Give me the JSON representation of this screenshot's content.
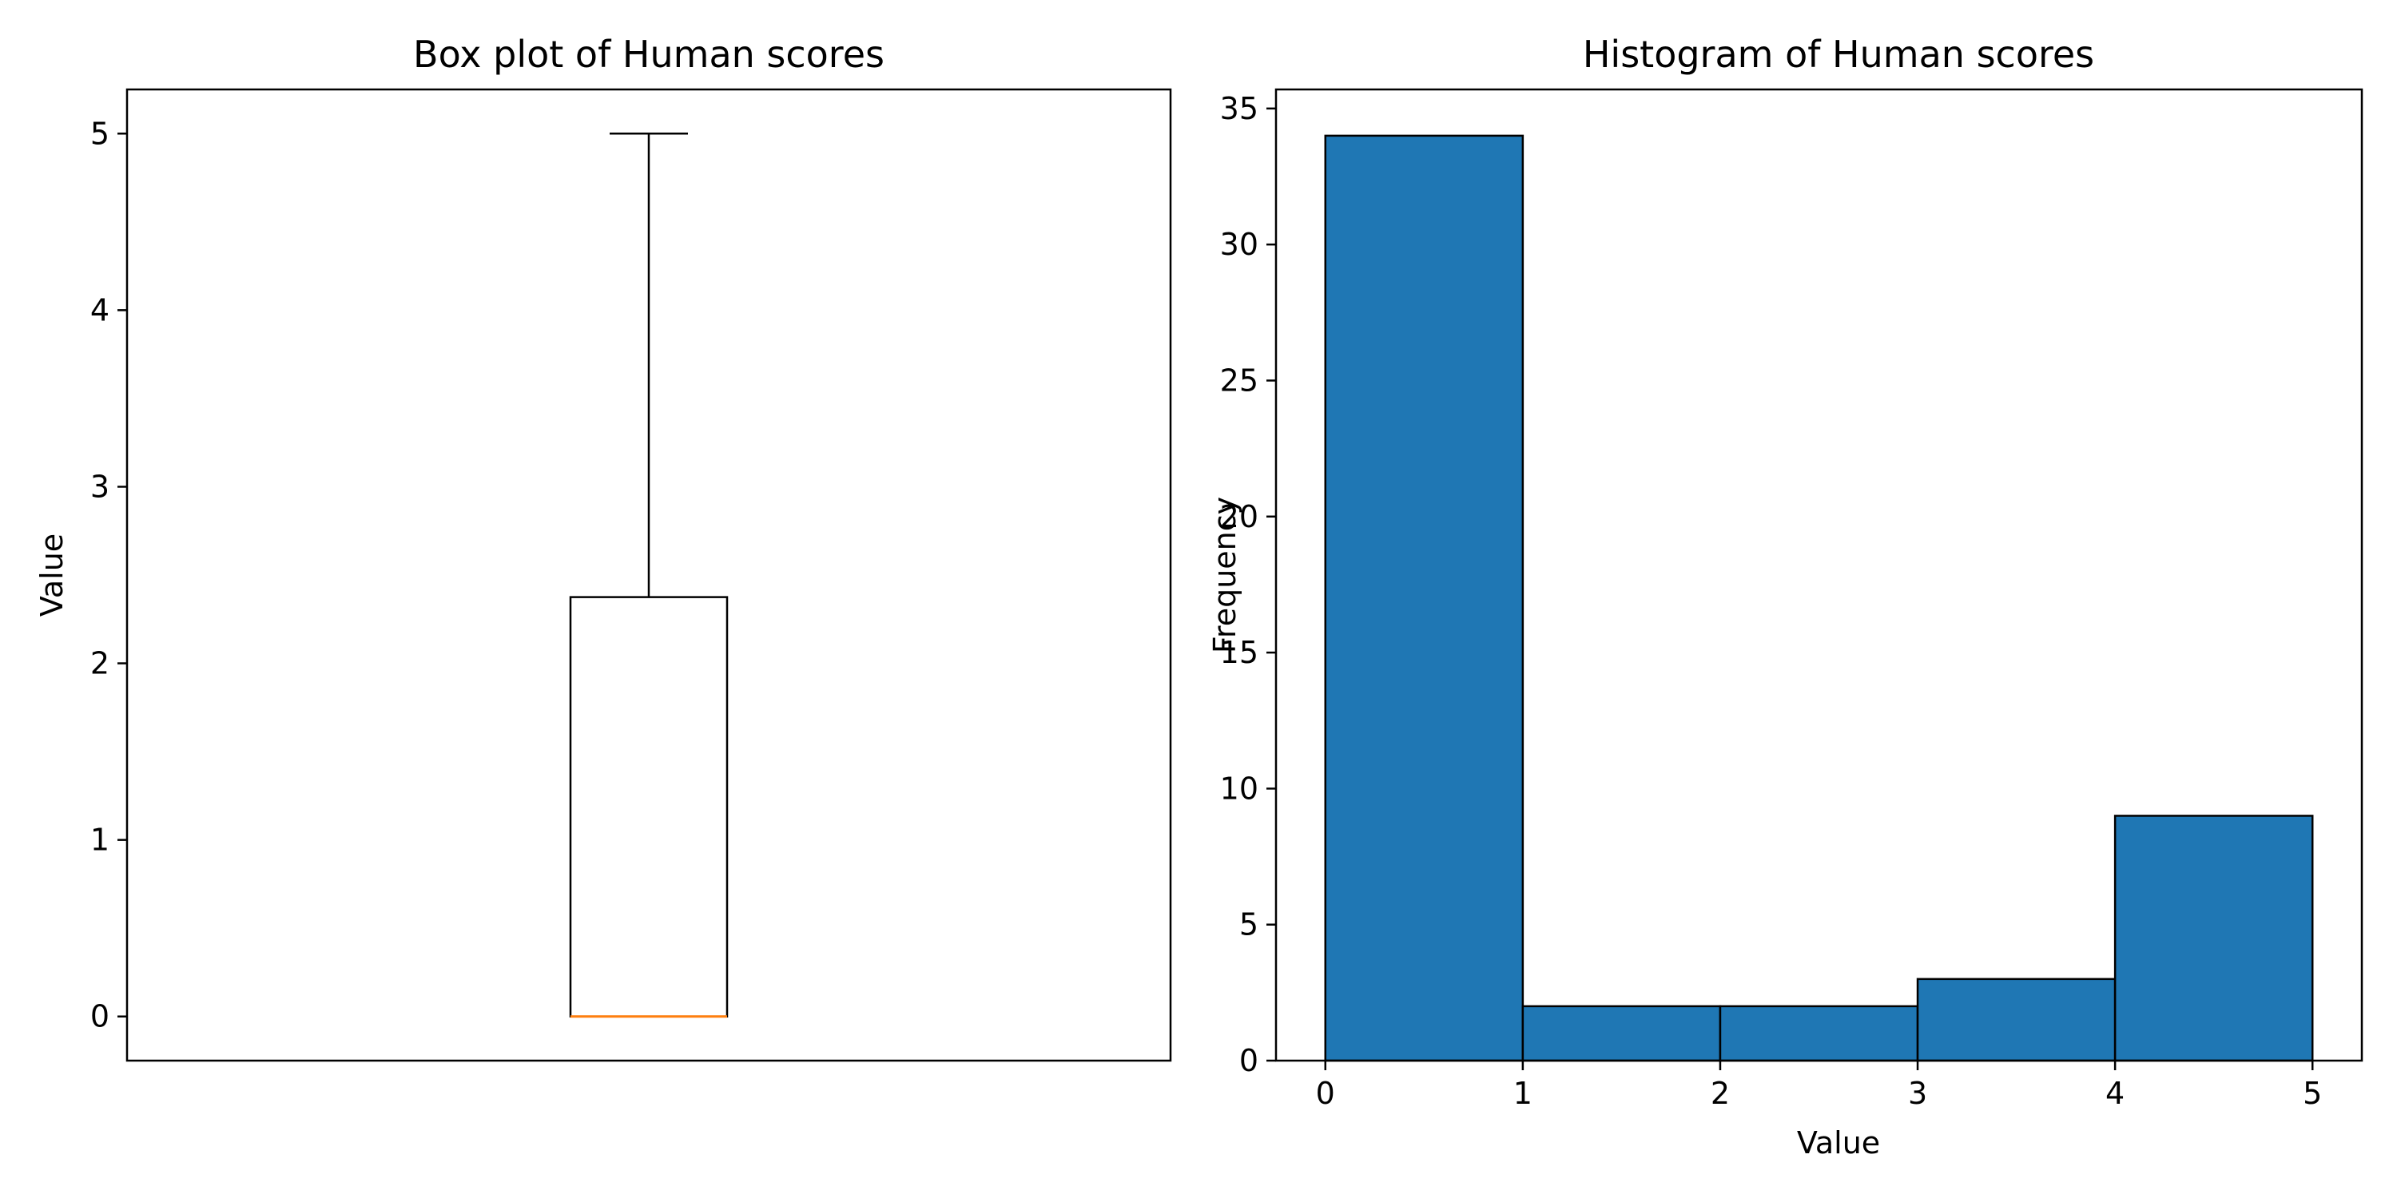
{
  "chart_data": [
    {
      "type": "box",
      "title": "Box plot of Human scores",
      "xlabel": "",
      "ylabel": "Value",
      "ylim": [
        -0.25,
        5.25
      ],
      "yticks": [
        0,
        1,
        2,
        3,
        4,
        5
      ],
      "box": {
        "whisker_low": 0,
        "q1": 0,
        "median": 0,
        "q3": 2.375,
        "whisker_high": 5
      },
      "median_color": "#ff7f0e"
    },
    {
      "type": "histogram",
      "title": "Histogram of Human scores",
      "xlabel": "Value",
      "ylabel": "Frequency",
      "xlim": [
        -0.25,
        5.25
      ],
      "ylim": [
        0,
        35.7
      ],
      "xticks": [
        0,
        1,
        2,
        3,
        4,
        5
      ],
      "yticks": [
        0,
        5,
        10,
        15,
        20,
        25,
        30,
        35
      ],
      "bins": [
        0,
        1,
        2,
        3,
        4,
        5
      ],
      "counts": [
        34,
        2,
        2,
        3,
        9
      ],
      "bar_color": "#1f77b4"
    }
  ]
}
